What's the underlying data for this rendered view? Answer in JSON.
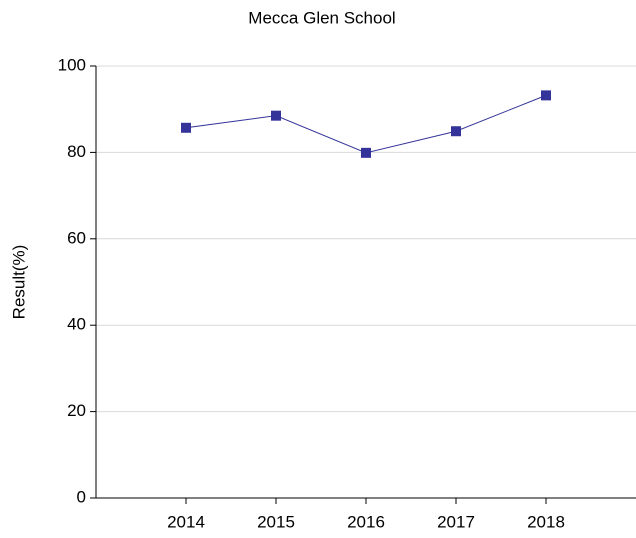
{
  "chart_data": {
    "type": "line",
    "title": "Mecca Glen School",
    "y_label": "Result(%)",
    "categories": [
      "2014",
      "2015",
      "2016",
      "2017",
      "2018"
    ],
    "series": [
      {
        "name": "Mecca Glen School",
        "color": "#333399",
        "values": [
          85.7,
          88.5,
          79.9,
          84.9,
          93.2
        ]
      }
    ],
    "ylim": [
      0,
      100
    ],
    "yticks": [
      0,
      20,
      40,
      60,
      80,
      100
    ],
    "grid": true
  }
}
